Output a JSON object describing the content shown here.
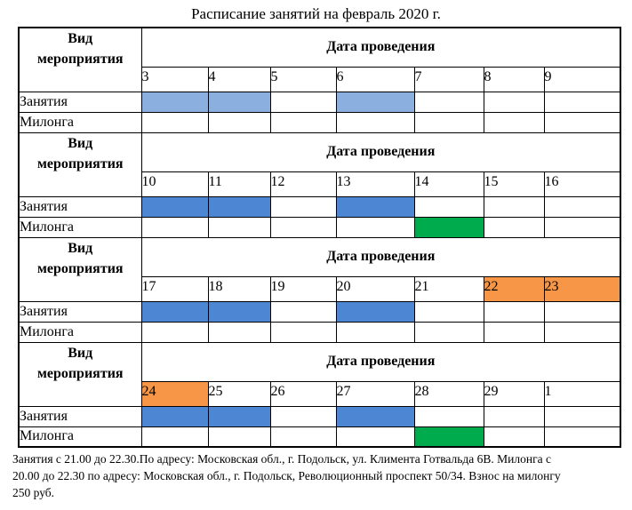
{
  "title": "Расписание занятий на февраль 2020 г.",
  "colors": {
    "light_blue": "#8BB0E0",
    "blue": "#4D86D2",
    "green": "#00AB4E",
    "orange": "#F69646"
  },
  "table": {
    "event_type_header": "Вид мероприятия",
    "date_header": "Дата проведения",
    "class_row_label": "Занятия",
    "milonga_row_label": "Милонга",
    "blocks": [
      {
        "dates": [
          "3",
          "4",
          "5",
          "6",
          "7",
          "8",
          "9"
        ],
        "date_highlights": [
          "",
          "",
          "",
          "",
          "",
          "",
          ""
        ],
        "class_cells": [
          "light_blue",
          "light_blue",
          "",
          "light_blue",
          "",
          "",
          ""
        ],
        "milonga_cells": [
          "",
          "",
          "",
          "",
          "",
          "",
          ""
        ]
      },
      {
        "dates": [
          "10",
          "11",
          "12",
          "13",
          "14",
          "15",
          "16"
        ],
        "date_highlights": [
          "",
          "",
          "",
          "",
          "",
          "",
          ""
        ],
        "class_cells": [
          "blue",
          "blue",
          "",
          "blue",
          "",
          "",
          ""
        ],
        "milonga_cells": [
          "",
          "",
          "",
          "",
          "green",
          "",
          ""
        ]
      },
      {
        "dates": [
          "17",
          "18",
          "19",
          "20",
          "21",
          "22",
          "23"
        ],
        "date_highlights": [
          "",
          "",
          "",
          "",
          "",
          "orange",
          "orange"
        ],
        "class_cells": [
          "blue",
          "blue",
          "",
          "blue",
          "",
          "",
          ""
        ],
        "milonga_cells": [
          "",
          "",
          "",
          "",
          "",
          "",
          ""
        ]
      },
      {
        "dates": [
          "24",
          "25",
          "26",
          "27",
          "28",
          "29",
          "1"
        ],
        "date_highlights": [
          "orange",
          "",
          "",
          "",
          "",
          "",
          ""
        ],
        "class_cells": [
          "blue",
          "blue",
          "",
          "blue",
          "",
          "",
          ""
        ],
        "milonga_cells": [
          "",
          "",
          "",
          "",
          "green",
          "",
          ""
        ]
      }
    ]
  },
  "footer_lines": [
    "Занятия с 21.00 до 22.30.По адресу: Московская обл., г. Подольск, ул. Климента Готвальда 6В. Милонга с",
    "20.00 до 22.30 по адресу: Московская обл., г. Подольск, Революционный проспект 50/34. Взнос на милонгу",
    "250 руб."
  ]
}
